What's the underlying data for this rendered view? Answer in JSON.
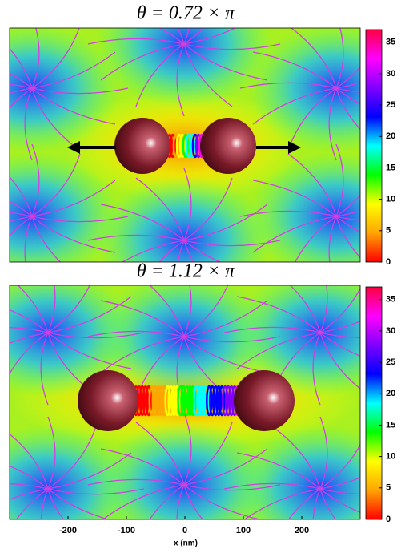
{
  "chart_data": [
    {
      "type": "heatmap",
      "title": "θ = 0.72 × π",
      "xlim": [
        -300,
        300
      ],
      "clim": [
        0,
        37
      ],
      "cticks": [
        0,
        5,
        10,
        15,
        20,
        25,
        30,
        35
      ],
      "colormap": [
        "#ff0000",
        "#ffa500",
        "#ffff00",
        "#00ff00",
        "#00ffff",
        "#0000ff",
        "#8000ff",
        "#ff00ff",
        "#ff0040"
      ]
    },
    {
      "type": "heatmap",
      "title": "θ = 1.12 × π",
      "xlim": [
        -300,
        300
      ],
      "clim": [
        0,
        37
      ],
      "cticks": [
        0,
        5,
        10,
        15,
        20,
        25,
        30,
        35
      ],
      "xticks": [
        -200,
        -100,
        0,
        100,
        200
      ],
      "xlabel": "x (nm)",
      "colormap": [
        "#ff0000",
        "#ffa500",
        "#ffff00",
        "#00ff00",
        "#00ffff",
        "#0000ff",
        "#8000ff",
        "#ff00ff",
        "#ff0040"
      ]
    }
  ]
}
